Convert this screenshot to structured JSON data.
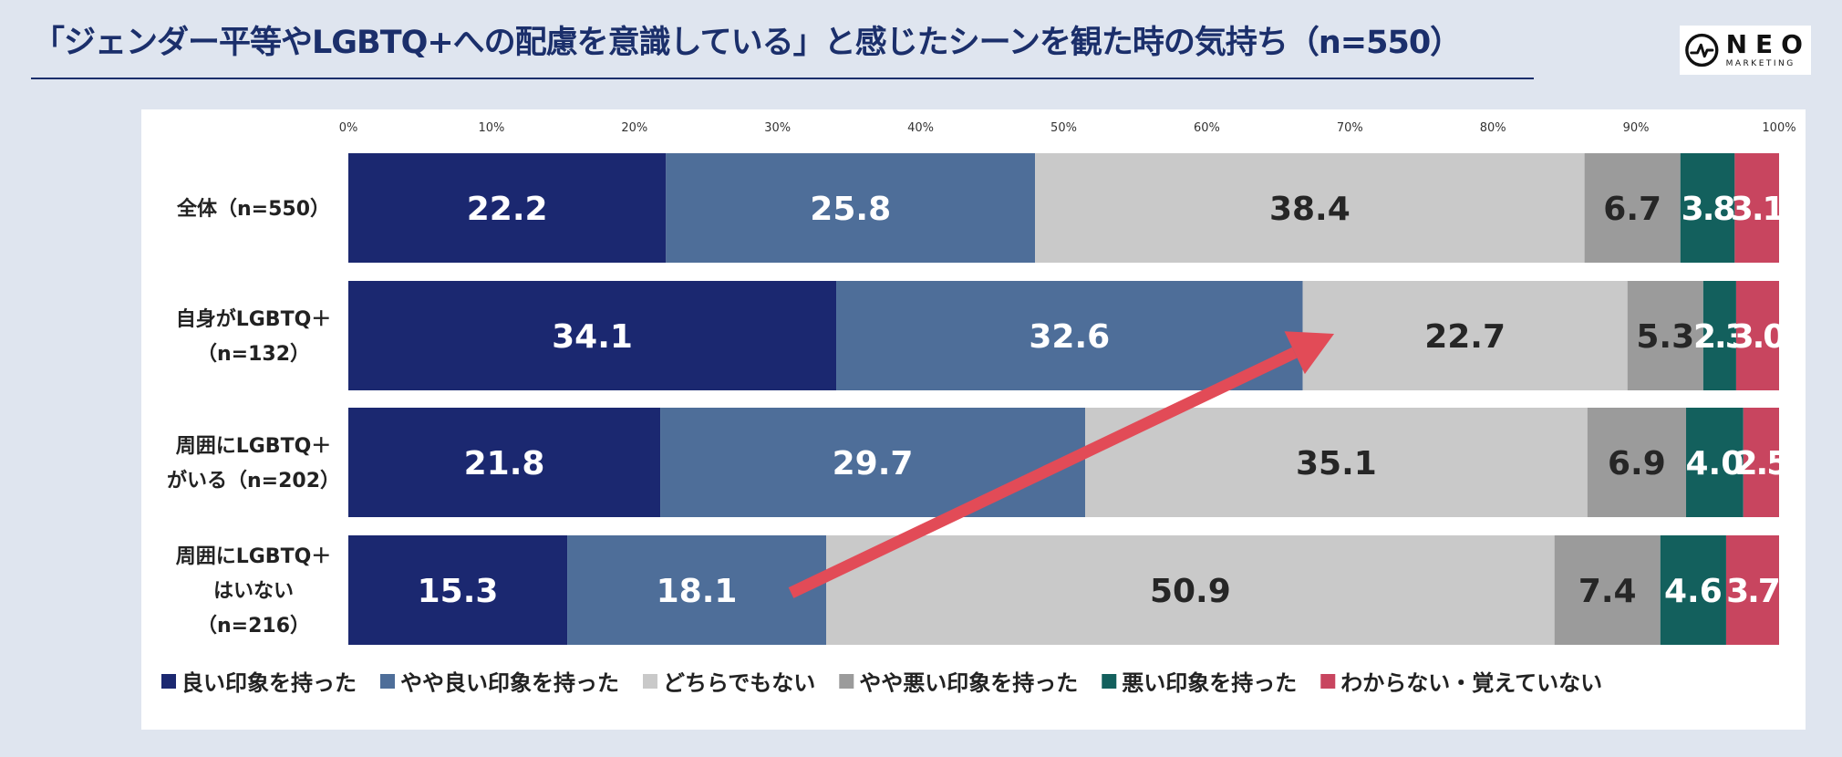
{
  "title": "「ジェンダー平等やLGBTQ+への配慮を意識している」と感じたシーンを観た時の気持ち（n=550）",
  "logo": {
    "main": "NEO",
    "sub": "MARKETING"
  },
  "chart_data": {
    "type": "bar",
    "orientation": "horizontal-stacked-100",
    "title": "「ジェンダー平等やLGBTQ+への配慮を意識している」と感じたシーンを観た時の気持ち（n=550）",
    "xlim": [
      0,
      100
    ],
    "x_ticks": [
      "0%",
      "10%",
      "20%",
      "30%",
      "40%",
      "50%",
      "60%",
      "70%",
      "80%",
      "90%",
      "100%"
    ],
    "categories": [
      [
        "全体（n=550）"
      ],
      [
        "自身がLGBTQ＋",
        "（n=132）"
      ],
      [
        "周囲にLGBTQ＋",
        "がいる（n=202）"
      ],
      [
        "周囲にLGBTQ＋",
        "はいない",
        "（n=216）"
      ]
    ],
    "series": [
      {
        "name": "良い印象を持った",
        "color": "#1b2870",
        "label_color": "#ffffff",
        "values": [
          22.2,
          34.1,
          21.8,
          15.3
        ]
      },
      {
        "name": "やや良い印象を持った",
        "color": "#4e6e99",
        "label_color": "#ffffff",
        "values": [
          25.8,
          32.6,
          29.7,
          18.1
        ]
      },
      {
        "name": "どちらでもない",
        "color": "#c9c9c9",
        "label_color": "#262626",
        "values": [
          38.4,
          22.7,
          35.1,
          50.9
        ]
      },
      {
        "name": "やや悪い印象を持った",
        "color": "#9b9b9b",
        "label_color": "#262626",
        "values": [
          6.7,
          5.3,
          6.9,
          7.4
        ]
      },
      {
        "name": "悪い印象を持った",
        "color": "#13605d",
        "label_color": "#ffffff",
        "values": [
          3.8,
          2.3,
          4.0,
          4.6
        ]
      },
      {
        "name": "わからない・覚えていない",
        "color": "#c8455f",
        "label_color": "#ffffff",
        "values": [
          3.1,
          3.0,
          2.5,
          3.7
        ]
      }
    ],
    "value_labels": [
      [
        "22.2",
        "25.8",
        "38.4",
        "6.7",
        "3.8",
        "3.1"
      ],
      [
        "34.1",
        "32.6",
        "22.7",
        "5.3",
        "2.3",
        "3.0"
      ],
      [
        "21.8",
        "29.7",
        "35.1",
        "6.9",
        "4.0",
        "2.5"
      ],
      [
        "15.3",
        "18.1",
        "50.9",
        "7.4",
        "4.6",
        "3.7"
      ]
    ],
    "legend_position": "bottom",
    "annotation": {
      "type": "arrow",
      "color": "#e24b57",
      "from_row": 3,
      "from_value": 32.6,
      "to_row": 1,
      "to_value": 68.9
    }
  }
}
